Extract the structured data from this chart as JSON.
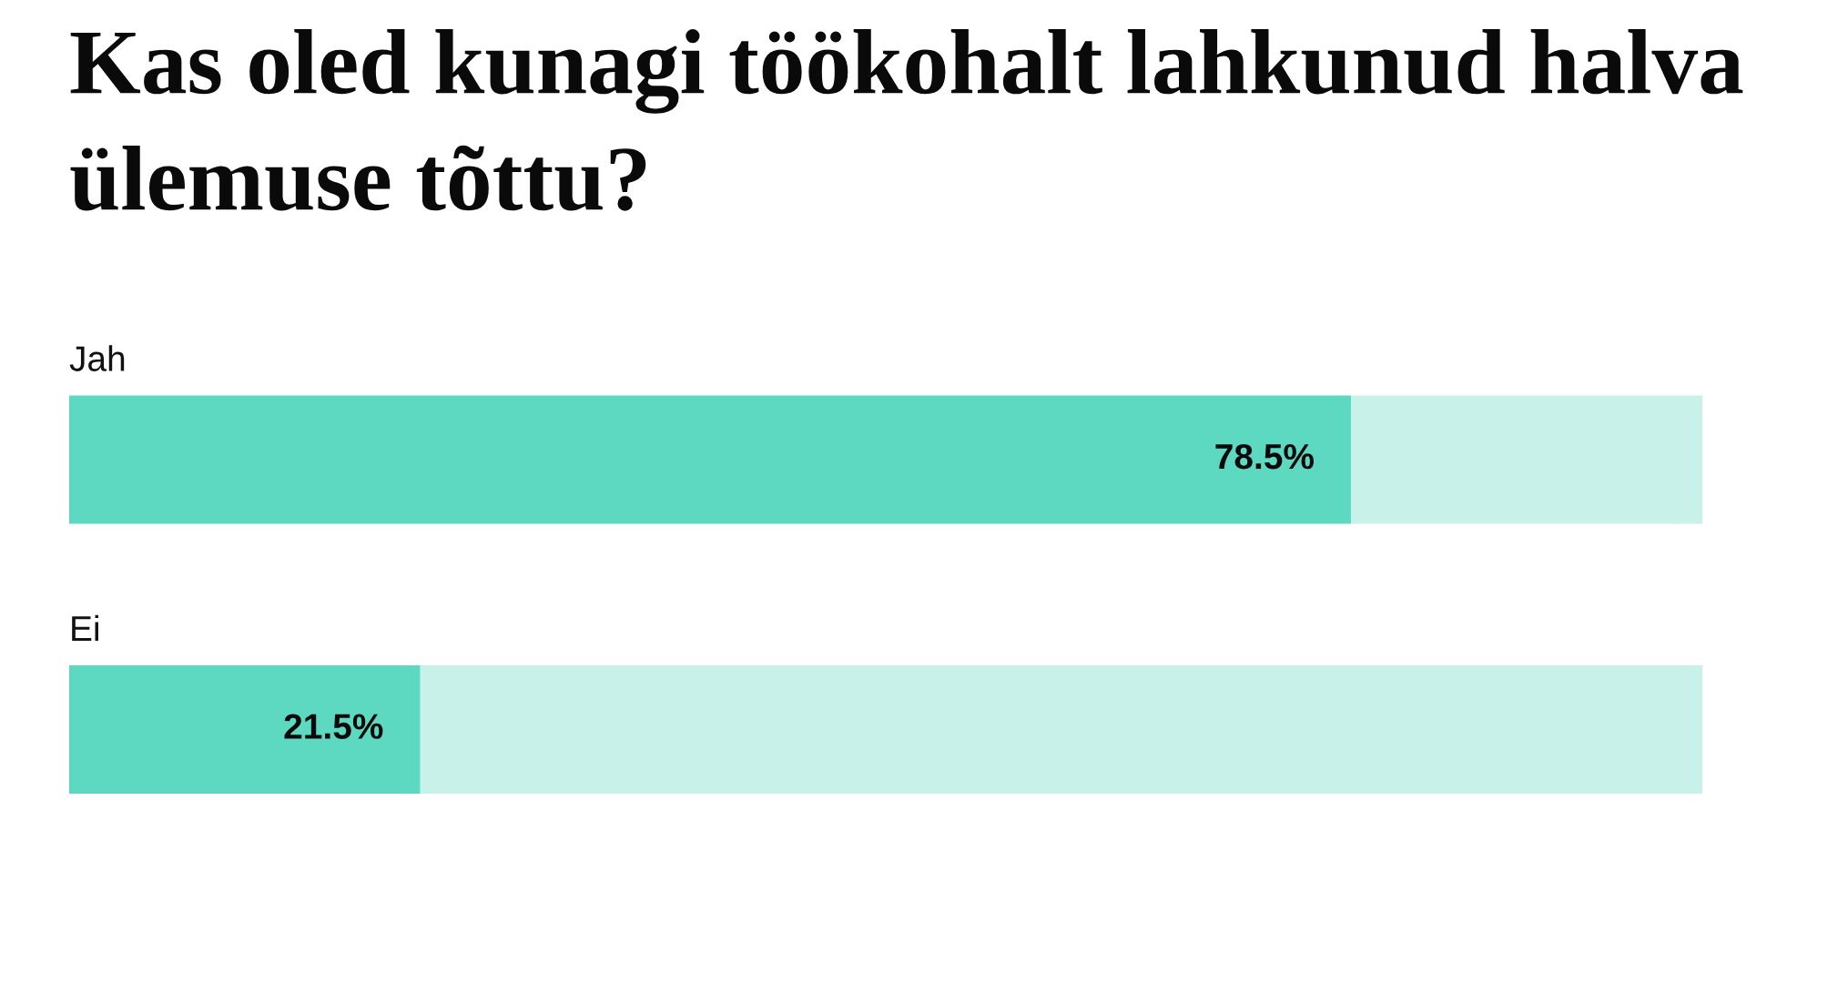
{
  "chart_data": {
    "type": "bar",
    "title": "Kas oled kunagi töökohalt lahkunud halva ülemuse tõttu?",
    "categories": [
      "Jah",
      "Ei"
    ],
    "orientation": "horizontal",
    "stacked": true,
    "xlim": [
      0,
      100
    ],
    "tick_labels": "y",
    "series": [
      {
        "color": "#5dd9c1",
        "values": [
          78.5,
          21.5
        ],
        "value_labels": [
          "78.5%",
          "21.5%"
        ]
      },
      {
        "color": "#c8f2e9",
        "values": [
          21.5,
          78.5
        ]
      }
    ]
  }
}
